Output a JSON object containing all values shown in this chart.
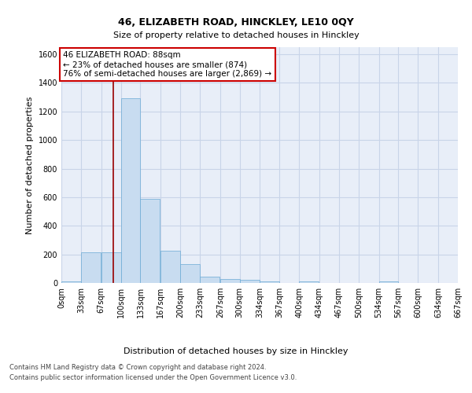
{
  "title1": "46, ELIZABETH ROAD, HINCKLEY, LE10 0QY",
  "title2": "Size of property relative to detached houses in Hinckley",
  "xlabel": "Distribution of detached houses by size in Hinckley",
  "ylabel": "Number of detached properties",
  "footer1": "Contains HM Land Registry data © Crown copyright and database right 2024.",
  "footer2": "Contains public sector information licensed under the Open Government Licence v3.0.",
  "annotation_line1": "46 ELIZABETH ROAD: 88sqm",
  "annotation_line2": "← 23% of detached houses are smaller (874)",
  "annotation_line3": "76% of semi-detached houses are larger (2,869) →",
  "bar_color": "#c8dcf0",
  "bar_edge_color": "#6aaad4",
  "grid_color": "#c8d4e8",
  "background_color": "#e8eef8",
  "vline_color": "#990000",
  "vline_x": 88,
  "bin_width": 33,
  "bin_starts": [
    0,
    33,
    67,
    100,
    133,
    167,
    200,
    233,
    267,
    300,
    334,
    367,
    400,
    434,
    467,
    500,
    534,
    567,
    600,
    634
  ],
  "bar_heights": [
    10,
    215,
    215,
    1290,
    590,
    225,
    130,
    45,
    25,
    20,
    10,
    0,
    10,
    0,
    0,
    0,
    10,
    0,
    0,
    0
  ],
  "tick_labels": [
    "0sqm",
    "33sqm",
    "67sqm",
    "100sqm",
    "133sqm",
    "167sqm",
    "200sqm",
    "233sqm",
    "267sqm",
    "300sqm",
    "334sqm",
    "367sqm",
    "400sqm",
    "434sqm",
    "467sqm",
    "500sqm",
    "534sqm",
    "567sqm",
    "600sqm",
    "634sqm",
    "667sqm"
  ],
  "ylim": [
    0,
    1650
  ],
  "xlim": [
    0,
    667
  ],
  "annotation_box_color": "white",
  "annotation_box_edge": "#cc0000",
  "title1_fontsize": 9,
  "title2_fontsize": 8,
  "ylabel_fontsize": 8,
  "xlabel_fontsize": 8,
  "tick_fontsize": 7,
  "footer_fontsize": 6
}
